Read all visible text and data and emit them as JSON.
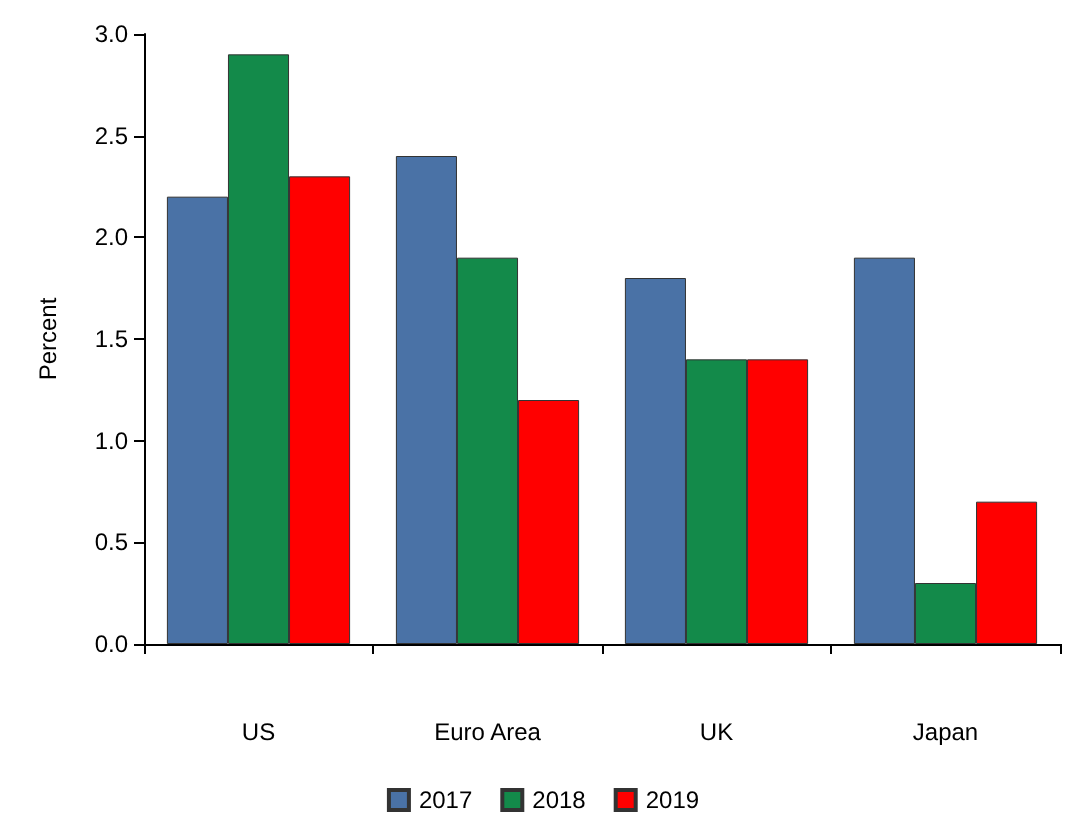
{
  "chart_data": {
    "type": "bar",
    "ylabel": "Percent",
    "categories": [
      "US",
      "Euro Area",
      "UK",
      "Japan"
    ],
    "series": [
      {
        "name": "2017",
        "color": "#4a72a6",
        "values": [
          2.2,
          2.4,
          1.8,
          1.9
        ]
      },
      {
        "name": "2018",
        "color": "#138a4a",
        "values": [
          2.9,
          1.9,
          1.4,
          0.3
        ]
      },
      {
        "name": "2019",
        "color": "#ff0000",
        "values": [
          2.3,
          1.2,
          1.4,
          0.7
        ]
      }
    ],
    "ylim": [
      0,
      3
    ],
    "yticks": [
      {
        "value": 0,
        "label": "0.0"
      },
      {
        "value": 0.5,
        "label": "0.5"
      },
      {
        "value": 1,
        "label": "1.0"
      },
      {
        "value": 1.5,
        "label": "1.5"
      },
      {
        "value": 2,
        "label": "2.0"
      },
      {
        "value": 2.5,
        "label": "2.5"
      },
      {
        "value": 3,
        "label": "3.0"
      }
    ],
    "grid": false,
    "legend": "bottom"
  }
}
